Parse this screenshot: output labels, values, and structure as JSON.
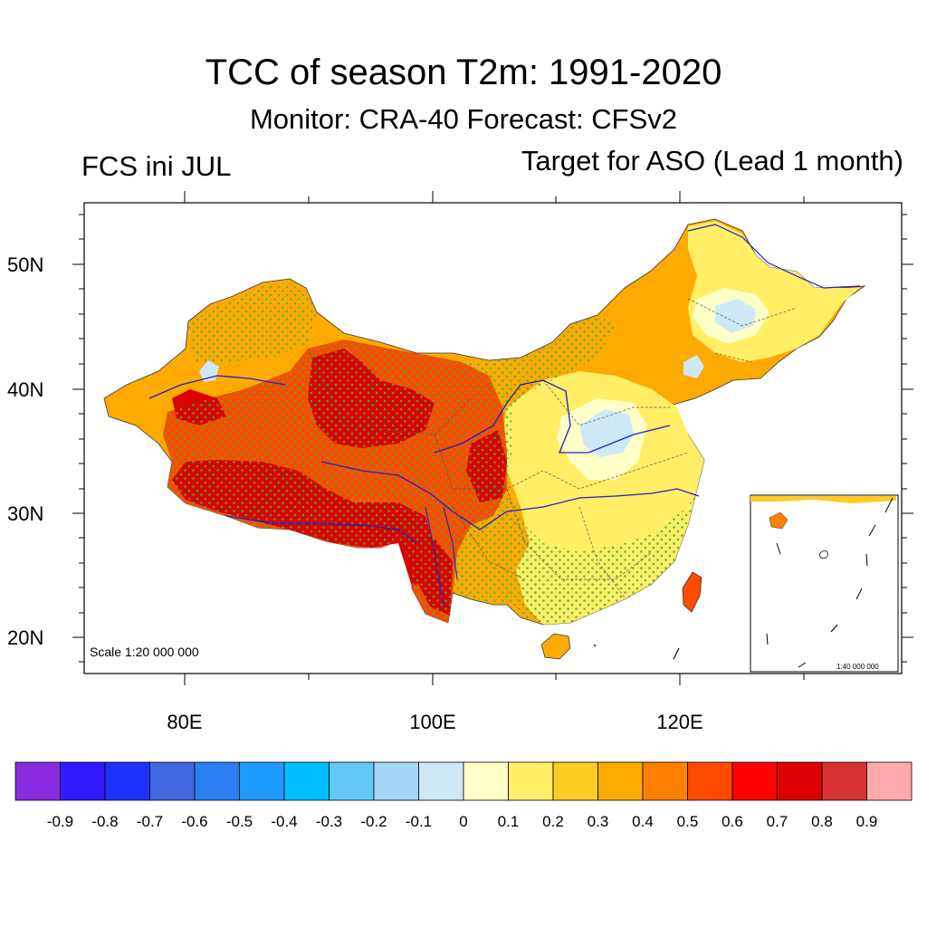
{
  "title": "TCC of season T2m: 1991-2020",
  "subtitle": "Monitor: CRA-40   Forecast: CFSv2",
  "left_label": "FCS ini JUL",
  "right_label": "Target for ASO (Lead 1 month)",
  "map": {
    "scale_label": "Scale 1:20 000 000",
    "inset_scale_label": "1:40 000 000",
    "lat_labels": [
      "50N",
      "40N",
      "30N",
      "20N"
    ],
    "lon_labels": [
      "80E",
      "100E",
      "120E"
    ],
    "stipple_color": "#3cb43c",
    "river_color": "#2020c8"
  },
  "colorbar": {
    "colors": [
      "#8a2be2",
      "#3219ff",
      "#1e32ff",
      "#4169e1",
      "#2a80f0",
      "#1e9bff",
      "#00bfff",
      "#63c8f5",
      "#a3d6f5",
      "#cde8f7",
      "#ffffc8",
      "#ffee66",
      "#ffcc22",
      "#ffaa00",
      "#ff8000",
      "#ff4a00",
      "#ff0000",
      "#dd0000",
      "#d83232",
      "#ffaaaa"
    ],
    "labels": [
      "-0.9",
      "-0.8",
      "-0.7",
      "-0.6",
      "-0.5",
      "-0.4",
      "-0.3",
      "-0.2",
      "-0.1",
      "0",
      "0.1",
      "0.2",
      "0.3",
      "0.4",
      "0.5",
      "0.6",
      "0.7",
      "0.8",
      "0.9"
    ]
  }
}
